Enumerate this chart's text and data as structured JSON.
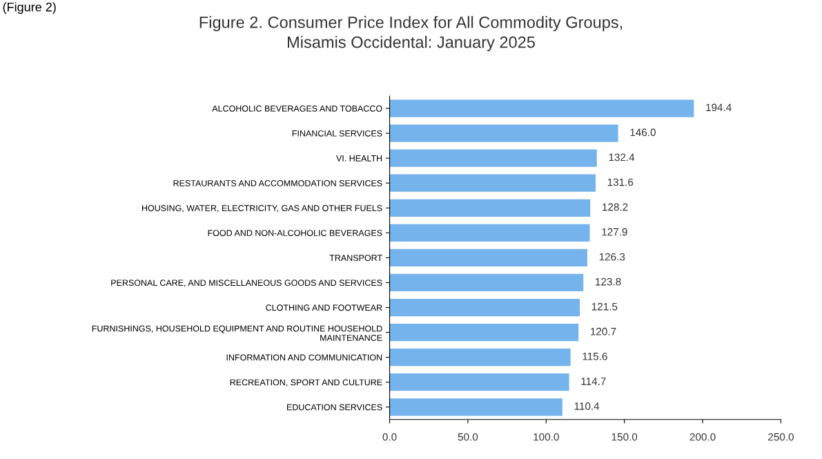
{
  "chart_data": {
    "type": "bar",
    "orientation": "horizontal",
    "title": "Figure 2. Consumer Price Index for All Commodity Groups,\nMisamis Occidental: January 2025",
    "annotations": [
      "(Figure 2)"
    ],
    "categories": [
      "ALCOHOLIC BEVERAGES AND TOBACCO",
      "FINANCIAL SERVICES",
      "VI. HEALTH",
      "RESTAURANTS AND ACCOMMODATION SERVICES",
      "HOUSING, WATER, ELECTRICITY, GAS AND OTHER FUELS",
      "FOOD AND NON-ALCOHOLIC BEVERAGES",
      "TRANSPORT",
      "PERSONAL CARE, AND MISCELLANEOUS GOODS AND SERVICES",
      "CLOTHING AND FOOTWEAR",
      "FURNISHINGS, HOUSEHOLD EQUIPMENT AND ROUTINE HOUSEHOLD\nMAINTENANCE",
      "INFORMATION AND COMMUNICATION",
      "RECREATION, SPORT AND CULTURE",
      "EDUCATION SERVICES"
    ],
    "values": [
      194.4,
      146.0,
      132.4,
      131.6,
      128.2,
      127.9,
      126.3,
      123.8,
      121.5,
      120.7,
      115.6,
      114.7,
      110.4
    ],
    "value_labels": [
      "194.4",
      "146.0",
      "132.4",
      "131.6",
      "128.2",
      "127.9",
      "126.3",
      "123.8",
      "121.5",
      "120.7",
      "115.6",
      "114.7",
      "110.4"
    ],
    "color": "#74b3ec",
    "xlim": [
      0,
      250
    ],
    "xticks": [
      {
        "value": 0,
        "label": "0.0"
      },
      {
        "value": 50,
        "label": "50.0"
      },
      {
        "value": 100,
        "label": "100.0"
      },
      {
        "value": 150,
        "label": "150.0"
      },
      {
        "value": 200,
        "label": "200.0"
      },
      {
        "value": 250,
        "label": "250.0"
      }
    ],
    "grid": false,
    "legend": false
  }
}
